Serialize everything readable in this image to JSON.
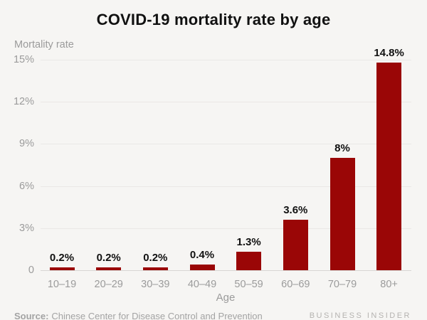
{
  "title": "COVID-19 mortality rate by age",
  "y_axis_label": "Mortality rate",
  "x_axis_label": "Age",
  "source": {
    "prefix": "Source:",
    "text": "Chinese Center for Disease Control and Prevention"
  },
  "branding": "BUSINESS INSIDER",
  "colors": {
    "background": "#f6f5f3",
    "bar": "#9a0606",
    "gridline": "#eae8e6",
    "baseline": "#d8d6d3",
    "axis_text": "#9b9b9b",
    "title_text": "#111111",
    "value_label_text": "#111111",
    "source_text": "#a3a3a3",
    "branding_text": "#b5b3b0"
  },
  "chart_data": {
    "type": "bar",
    "title": "COVID-19 mortality rate by age",
    "xlabel": "Age",
    "ylabel": "Mortality rate",
    "categories": [
      "10–19",
      "20–29",
      "30–39",
      "40–49",
      "50–59",
      "60–69",
      "70–79",
      "80+"
    ],
    "values": [
      0.2,
      0.2,
      0.2,
      0.4,
      1.3,
      3.6,
      8,
      14.8
    ],
    "value_labels": [
      "0.2%",
      "0.2%",
      "0.2%",
      "0.4%",
      "1.3%",
      "3.6%",
      "8%",
      "14.8%"
    ],
    "ylim": [
      0,
      15
    ],
    "yticks": [
      0,
      3,
      6,
      9,
      12,
      15
    ],
    "ytick_labels": [
      "0",
      "3%",
      "6%",
      "9%",
      "12%",
      "15%"
    ],
    "grid": true,
    "legend": false
  }
}
